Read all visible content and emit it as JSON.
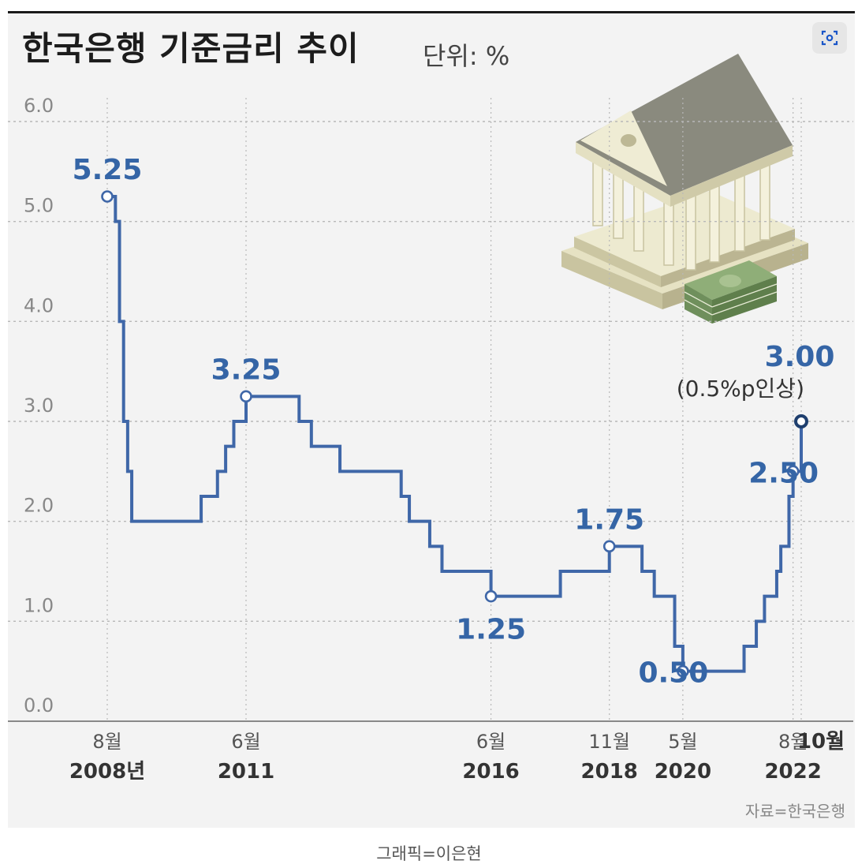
{
  "header": {
    "title": "한국은행 기준금리 추이",
    "unit": "단위: %"
  },
  "footer": {
    "source": "자료=한국은행",
    "credit": "그래픽=이은현"
  },
  "colors": {
    "line": "#3f67a8",
    "label": "#3565a6",
    "grid": "#b8b8b8"
  },
  "icons": {
    "share": "lens-icon",
    "illustration": "bank-building-illustration"
  },
  "chart_data": {
    "type": "line",
    "step": true,
    "title": "한국은행 기준금리 추이",
    "ylabel": "단위: %",
    "ylim": [
      0,
      6
    ],
    "yticks": [
      "0.0",
      "1.0",
      "2.0",
      "3.0",
      "4.0",
      "5.0",
      "6.0"
    ],
    "grid": true,
    "x_tick_labels": [
      {
        "month": "8월",
        "year": "2008년",
        "date": "2008-08"
      },
      {
        "month": "6월",
        "year": "2011",
        "date": "2011-06"
      },
      {
        "month": "6월",
        "year": "2016",
        "date": "2016-06"
      },
      {
        "month": "11월",
        "year": "2018",
        "date": "2018-11"
      },
      {
        "month": "5월",
        "year": "2020",
        "date": "2020-05"
      },
      {
        "month": "8월",
        "year": "2022",
        "date": "2022-08"
      },
      {
        "month": "10월",
        "year": "",
        "date": "2022-10"
      }
    ],
    "series": [
      {
        "points": [
          [
            "2008-08",
            5.25
          ],
          [
            "2008-10",
            5.0
          ],
          [
            "2008-11",
            4.0
          ],
          [
            "2008-12",
            3.0
          ],
          [
            "2009-01",
            2.5
          ],
          [
            "2009-02",
            2.0
          ],
          [
            "2010-07",
            2.25
          ],
          [
            "2010-11",
            2.5
          ],
          [
            "2011-01",
            2.75
          ],
          [
            "2011-03",
            3.0
          ],
          [
            "2011-06",
            3.25
          ],
          [
            "2012-07",
            3.0
          ],
          [
            "2012-10",
            2.75
          ],
          [
            "2013-05",
            2.5
          ],
          [
            "2014-08",
            2.25
          ],
          [
            "2014-10",
            2.0
          ],
          [
            "2015-03",
            1.75
          ],
          [
            "2015-06",
            1.5
          ],
          [
            "2016-06",
            1.25
          ],
          [
            "2017-11",
            1.5
          ],
          [
            "2018-11",
            1.75
          ],
          [
            "2019-07",
            1.5
          ],
          [
            "2019-10",
            1.25
          ],
          [
            "2020-03",
            0.75
          ],
          [
            "2020-05",
            0.5
          ],
          [
            "2021-08",
            0.75
          ],
          [
            "2021-11",
            1.0
          ],
          [
            "2022-01",
            1.25
          ],
          [
            "2022-04",
            1.5
          ],
          [
            "2022-05",
            1.75
          ],
          [
            "2022-07",
            2.25
          ],
          [
            "2022-08",
            2.5
          ],
          [
            "2022-10",
            3.0
          ]
        ]
      }
    ],
    "annotations": [
      {
        "date": "2008-08",
        "value": 5.25,
        "text": "5.25",
        "pos": "above"
      },
      {
        "date": "2011-06",
        "value": 3.25,
        "text": "3.25",
        "pos": "above"
      },
      {
        "date": "2016-06",
        "value": 1.25,
        "text": "1.25",
        "pos": "below"
      },
      {
        "date": "2018-11",
        "value": 1.75,
        "text": "1.75",
        "pos": "above"
      },
      {
        "date": "2020-05",
        "value": 0.5,
        "text": "0.50",
        "pos": "left"
      },
      {
        "date": "2022-08",
        "value": 2.5,
        "text": "2.50",
        "pos": "left"
      },
      {
        "date": "2022-10",
        "value": 3.0,
        "text": "3.00",
        "sub": "(0.5%p인상)",
        "pos": "above-big"
      }
    ],
    "end_date": "2022-11"
  }
}
